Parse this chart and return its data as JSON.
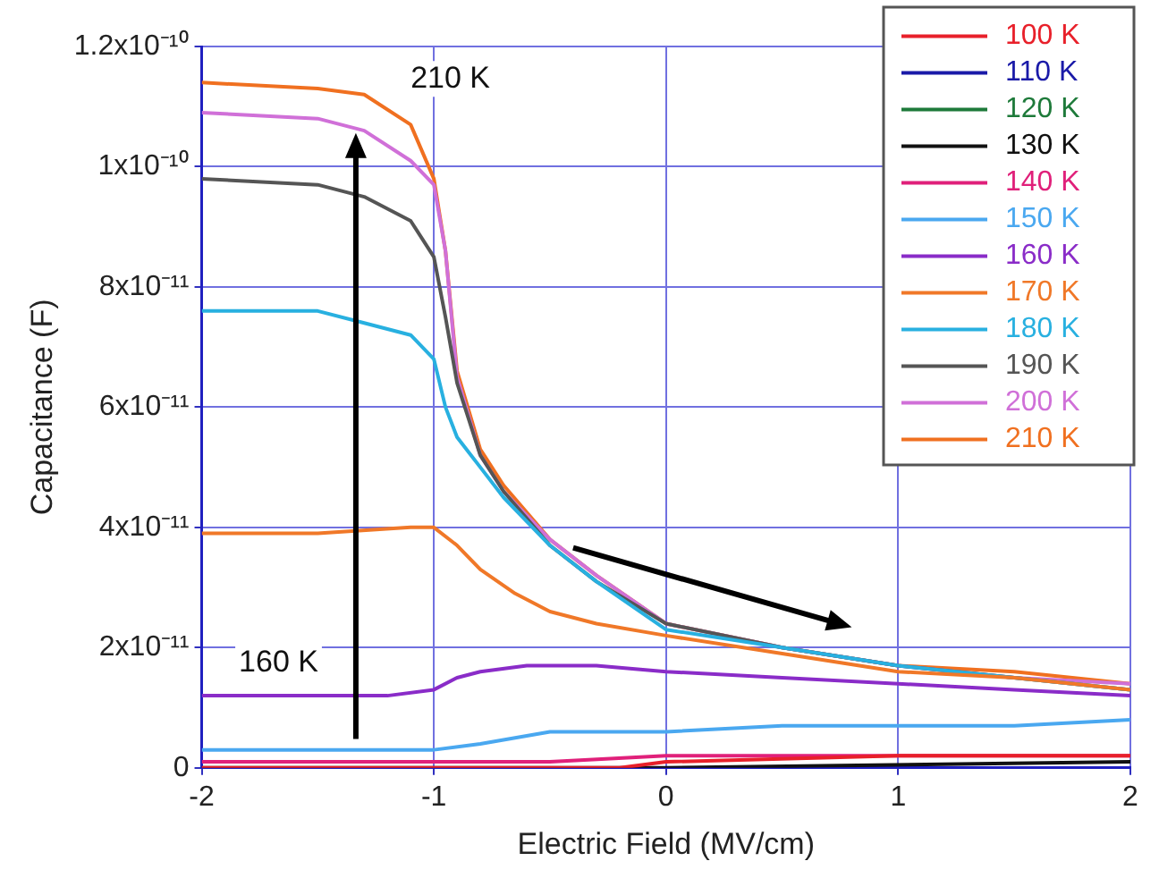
{
  "chart_data": {
    "type": "line",
    "xlabel": "Electric Field (MV/cm)",
    "ylabel": "Capacitance (F)",
    "xlim": [
      -2,
      2
    ],
    "xticks": [
      -2,
      -1,
      0,
      1,
      2
    ],
    "ylim": [
      0,
      1.2e-10
    ],
    "yticks": [
      {
        "value": 0,
        "label": "0"
      },
      {
        "value": 2e-11,
        "label": "2x10⁻¹¹"
      },
      {
        "value": 4e-11,
        "label": "4x10⁻¹¹"
      },
      {
        "value": 6e-11,
        "label": "6x10⁻¹¹"
      },
      {
        "value": 8e-11,
        "label": "8x10⁻¹¹"
      },
      {
        "value": 1e-10,
        "label": "1x10⁻¹⁰"
      },
      {
        "value": 1.2e-10,
        "label": "1.2x10⁻¹⁰"
      }
    ],
    "grid": true,
    "legend": "top right",
    "marker": "none",
    "line_style": "solid",
    "annotations": [
      "210 K",
      "160 K"
    ],
    "series": [
      {
        "name": "100 K",
        "color": "#e8202a",
        "x": [
          -2,
          -1,
          -0.2,
          0,
          1,
          2
        ],
        "values": [
          0,
          0,
          0,
          1e-12,
          2e-12,
          2e-12
        ]
      },
      {
        "name": "110 K",
        "color": "#1a1aa8"
      },
      {
        "name": "120 K",
        "color": "#1e7a3a"
      },
      {
        "name": "130 K",
        "color": "#111111",
        "x": [
          -2,
          -1,
          0,
          2
        ],
        "values": [
          0,
          0,
          0,
          1e-12
        ]
      },
      {
        "name": "140 K",
        "color": "#e0207a",
        "x": [
          -2,
          -1,
          -0.5,
          0,
          1,
          2
        ],
        "values": [
          1e-12,
          1e-12,
          1e-12,
          2e-12,
          2e-12,
          2e-12
        ]
      },
      {
        "name": "150 K",
        "color": "#4aa8f0",
        "x": [
          -2,
          -1.5,
          -1,
          -0.8,
          -0.5,
          0,
          0.5,
          1,
          1.5,
          2
        ],
        "values": [
          3e-12,
          3e-12,
          3e-12,
          4e-12,
          6e-12,
          6e-12,
          7e-12,
          7e-12,
          7e-12,
          8e-12
        ]
      },
      {
        "name": "160 K",
        "color": "#8a2cc8",
        "x": [
          -2,
          -1.5,
          -1.2,
          -1,
          -0.9,
          -0.8,
          -0.6,
          -0.3,
          0,
          0.5,
          1,
          1.5,
          2
        ],
        "values": [
          1.2e-11,
          1.2e-11,
          1.2e-11,
          1.3e-11,
          1.5e-11,
          1.6e-11,
          1.7e-11,
          1.7e-11,
          1.6e-11,
          1.5e-11,
          1.4e-11,
          1.3e-11,
          1.2e-11
        ]
      },
      {
        "name": "170 K",
        "color": "#f07828",
        "x": [
          -2,
          -1.5,
          -1.1,
          -1,
          -0.9,
          -0.8,
          -0.65,
          -0.5,
          -0.3,
          0,
          0.5,
          1,
          1.5,
          2
        ],
        "values": [
          3.9e-11,
          3.9e-11,
          4e-11,
          4e-11,
          3.7e-11,
          3.3e-11,
          2.9e-11,
          2.6e-11,
          2.4e-11,
          2.2e-11,
          1.9e-11,
          1.6e-11,
          1.5e-11,
          1.3e-11
        ]
      },
      {
        "name": "180 K",
        "color": "#28b0e0",
        "x": [
          -2,
          -1.5,
          -1.3,
          -1.1,
          -1,
          -0.95,
          -0.9,
          -0.8,
          -0.7,
          -0.5,
          -0.3,
          0,
          0.5,
          1,
          1.5,
          2
        ],
        "values": [
          7.6e-11,
          7.6e-11,
          7.4e-11,
          7.2e-11,
          6.8e-11,
          6e-11,
          5.5e-11,
          5e-11,
          4.5e-11,
          3.7e-11,
          3.1e-11,
          2.3e-11,
          2e-11,
          1.7e-11,
          1.5e-11,
          1.3e-11
        ]
      },
      {
        "name": "190 K",
        "color": "#555555",
        "x": [
          -2,
          -1.5,
          -1.3,
          -1.1,
          -1,
          -0.95,
          -0.9,
          -0.8,
          -0.7,
          -0.5,
          -0.3,
          0,
          0.5,
          1,
          1.5,
          2
        ],
        "values": [
          9.8e-11,
          9.7e-11,
          9.5e-11,
          9.1e-11,
          8.5e-11,
          7.5e-11,
          6.4e-11,
          5.2e-11,
          4.6e-11,
          3.7e-11,
          3.1e-11,
          2.4e-11,
          2e-11,
          1.7e-11,
          1.5e-11,
          1.3e-11
        ]
      },
      {
        "name": "200 K",
        "color": "#d070d8",
        "x": [
          -2,
          -1.5,
          -1.3,
          -1.1,
          -1,
          -0.95,
          -0.9,
          -0.8,
          -0.7,
          -0.5,
          -0.3,
          0,
          0.5,
          1,
          1.5,
          2
        ],
        "values": [
          1.09e-10,
          1.08e-10,
          1.06e-10,
          1.01e-10,
          9.7e-11,
          8.6e-11,
          6.5e-11,
          5.2e-11,
          4.6e-11,
          3.8e-11,
          3.2e-11,
          2.4e-11,
          2e-11,
          1.7e-11,
          1.5e-11,
          1.4e-11
        ]
      },
      {
        "name": "210 K",
        "color": "#f07020",
        "x": [
          -2,
          -1.5,
          -1.3,
          -1.1,
          -1,
          -0.95,
          -0.9,
          -0.8,
          -0.7,
          -0.5,
          -0.3,
          0,
          0.5,
          1,
          1.5,
          2
        ],
        "values": [
          1.14e-10,
          1.13e-10,
          1.12e-10,
          1.07e-10,
          9.8e-11,
          8.6e-11,
          6.6e-11,
          5.3e-11,
          4.7e-11,
          3.8e-11,
          3.2e-11,
          2.4e-11,
          2e-11,
          1.7e-11,
          1.6e-11,
          1.4e-11
        ]
      }
    ]
  }
}
